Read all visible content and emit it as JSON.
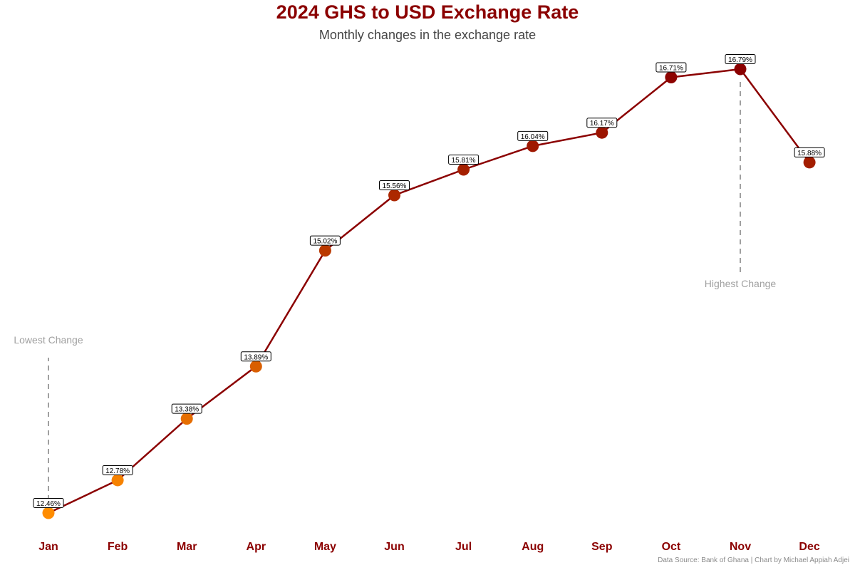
{
  "header": {
    "title": "2024 GHS to USD Exchange Rate",
    "subtitle": "Monthly changes in the exchange rate"
  },
  "footer": {
    "caption": "Data Source: Bank of Ghana | Chart by Michael Appiah Adjei"
  },
  "colors": {
    "line": "#8b0000",
    "title": "#8b0000",
    "axis_labels": "#8b0000",
    "annotation": "#a0a0a0",
    "point_low": "#ff8c00",
    "point_high": "#8b0000"
  },
  "chart_data": {
    "type": "line",
    "title": "2024 GHS to USD Exchange Rate",
    "subtitle": "Monthly changes in the exchange rate",
    "xlabel": "",
    "ylabel": "",
    "categories": [
      "Jan",
      "Feb",
      "Mar",
      "Apr",
      "May",
      "Jun",
      "Jul",
      "Aug",
      "Sep",
      "Oct",
      "Nov",
      "Dec"
    ],
    "values": [
      12.46,
      12.78,
      13.38,
      13.89,
      15.02,
      15.56,
      15.81,
      16.04,
      16.17,
      16.71,
      16.79,
      15.88
    ],
    "data_labels": [
      "12.46%",
      "12.78%",
      "13.38%",
      "13.89%",
      "15.02%",
      "15.56%",
      "15.81%",
      "16.04%",
      "16.17%",
      "16.71%",
      "16.79%",
      "15.88%"
    ],
    "grid": false,
    "legend": "none",
    "annotations": [
      {
        "category": "Jan",
        "text": "Lowest Change"
      },
      {
        "category": "Nov",
        "text": "Highest Change"
      }
    ]
  }
}
